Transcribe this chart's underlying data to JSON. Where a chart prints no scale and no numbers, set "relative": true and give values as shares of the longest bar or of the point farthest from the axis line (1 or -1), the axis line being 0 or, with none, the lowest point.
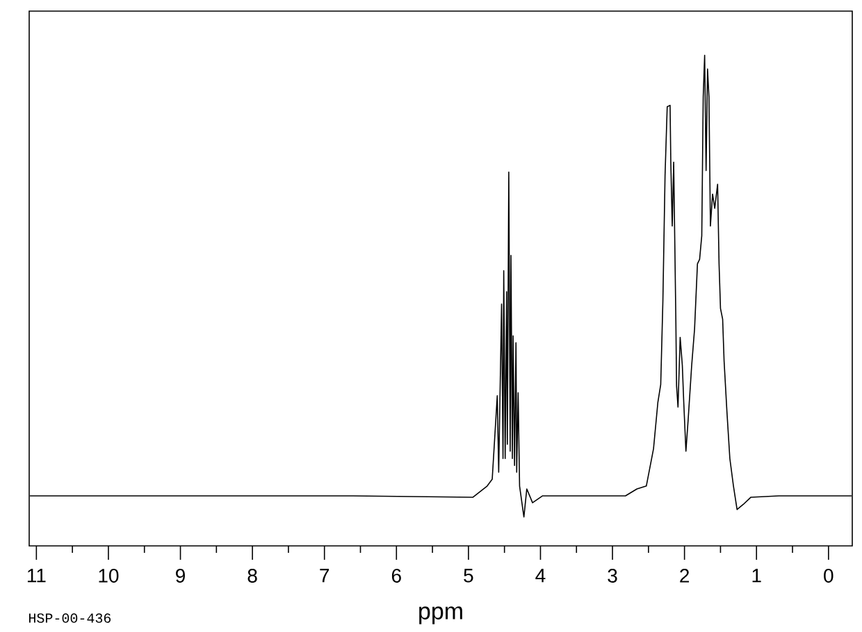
{
  "chart_data": {
    "type": "line",
    "xlabel": "ppm",
    "relative": true,
    "annotations": [
      "HSP-00-436"
    ],
    "xlim": [
      11.1,
      -0.33
    ],
    "xticks": [
      0,
      {
        "value": 0.5,
        "label": null
      },
      1,
      {
        "value": 1.5,
        "label": null
      },
      2,
      {
        "value": 2.5,
        "label": null
      },
      3,
      {
        "value": 3.5,
        "label": null
      },
      4,
      {
        "value": 4.5,
        "label": null
      },
      5,
      {
        "value": 5.5,
        "label": null
      },
      6,
      {
        "value": 6.5,
        "label": null
      },
      7,
      {
        "value": 7.5,
        "label": null
      },
      8,
      {
        "value": 8.5,
        "label": null
      },
      9,
      {
        "value": 9.5,
        "label": null
      },
      10,
      {
        "value": 10.5,
        "label": null
      },
      11
    ],
    "color": "#000000",
    "x": [
      11.09,
      9.18,
      6.67,
      4.94,
      4.74,
      4.67,
      4.6,
      4.58,
      4.54,
      4.52,
      4.51,
      4.49,
      4.47,
      4.46,
      4.44,
      4.42,
      4.41,
      4.39,
      4.38,
      4.36,
      4.34,
      4.33,
      4.31,
      4.29,
      4.23,
      4.19,
      4.11,
      3.97,
      3.39,
      2.82,
      2.66,
      2.53,
      2.43,
      2.37,
      2.33,
      2.3,
      2.27,
      2.24,
      2.2,
      2.19,
      2.17,
      2.15,
      2.12,
      2.11,
      2.09,
      2.06,
      2.03,
      2.01,
      1.98,
      1.95,
      1.9,
      1.86,
      1.82,
      1.79,
      1.76,
      1.74,
      1.72,
      1.7,
      1.68,
      1.66,
      1.64,
      1.61,
      1.58,
      1.54,
      1.52,
      1.5,
      1.47,
      1.45,
      1.41,
      1.37,
      1.32,
      1.27,
      1.18,
      1.08,
      0.69,
      -0.32
    ],
    "values": [
      0.102,
      0.102,
      0.102,
      0.099,
      0.122,
      0.136,
      0.306,
      0.15,
      0.493,
      0.178,
      0.561,
      0.178,
      0.518,
      0.207,
      0.762,
      0.193,
      0.592,
      0.178,
      0.428,
      0.164,
      0.414,
      0.15,
      0.312,
      0.122,
      0.059,
      0.116,
      0.088,
      0.102,
      0.102,
      0.102,
      0.116,
      0.122,
      0.198,
      0.292,
      0.329,
      0.499,
      0.754,
      0.895,
      0.898,
      0.782,
      0.652,
      0.782,
      0.462,
      0.326,
      0.283,
      0.425,
      0.368,
      0.292,
      0.193,
      0.255,
      0.368,
      0.442,
      0.575,
      0.584,
      0.632,
      0.915,
      1.0,
      0.765,
      0.972,
      0.915,
      0.652,
      0.717,
      0.688,
      0.737,
      0.575,
      0.484,
      0.462,
      0.377,
      0.272,
      0.178,
      0.122,
      0.074,
      0.085,
      0.099,
      0.102,
      0.102
    ]
  }
}
